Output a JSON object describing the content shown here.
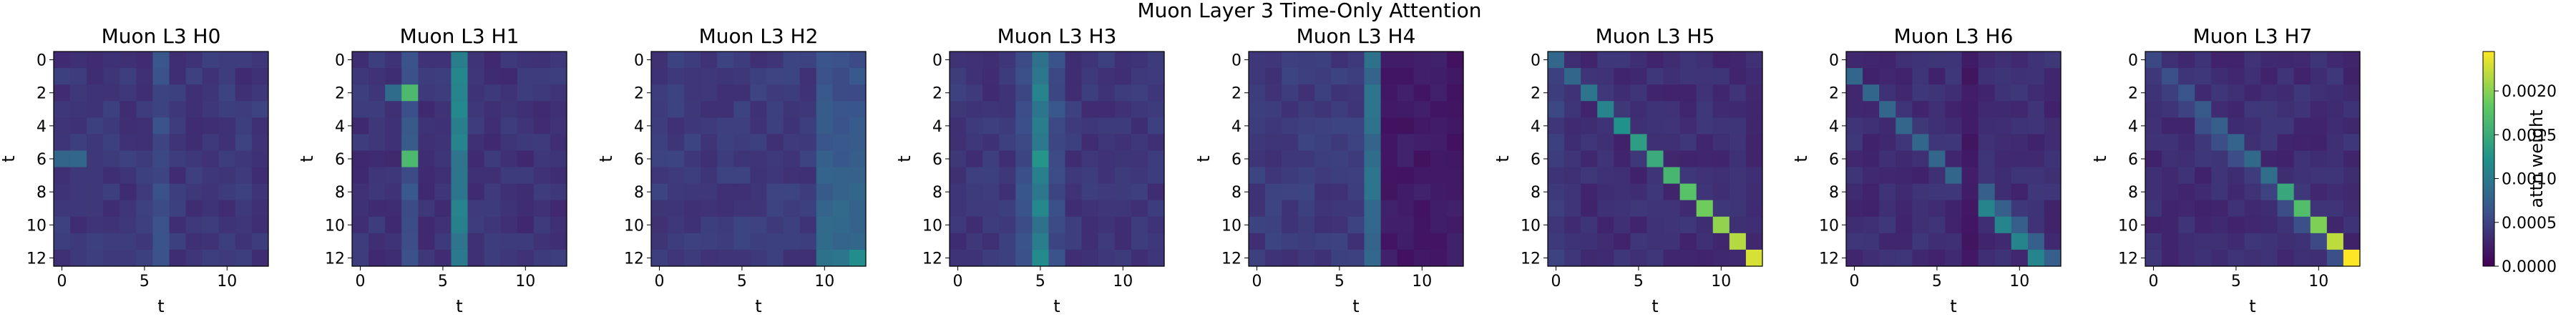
{
  "figure": {
    "suptitle": "Muon Layer 3 Time-Only Attention"
  },
  "colorbar": {
    "label": "attn weight",
    "ticks": [
      "0.0000",
      "0.0005",
      "0.0010",
      "0.0015",
      "0.0020"
    ]
  },
  "chart_data": [
    {
      "type": "heatmap",
      "title": "Muon L3 H0",
      "xlabel": "t",
      "ylabel": "t",
      "xticks": [
        "0",
        "5",
        "10"
      ],
      "yticks": [
        "0",
        "2",
        "4",
        "6",
        "8",
        "10",
        "12"
      ],
      "pattern": "uniform",
      "colormap": "viridis",
      "vmin": 0.0,
      "vmax": 0.00245
    },
    {
      "type": "heatmap",
      "title": "Muon L3 H1",
      "xlabel": "t",
      "ylabel": "t",
      "xticks": [
        "0",
        "5",
        "10"
      ],
      "yticks": [
        "0",
        "2",
        "4",
        "6",
        "8",
        "10",
        "12"
      ],
      "pattern": "column-6-3",
      "colormap": "viridis",
      "vmin": 0.0,
      "vmax": 0.00245
    },
    {
      "type": "heatmap",
      "title": "Muon L3 H2",
      "xlabel": "t",
      "ylabel": "t",
      "xticks": [
        "0",
        "5",
        "10"
      ],
      "yticks": [
        "0",
        "2",
        "4",
        "6",
        "8",
        "10",
        "12"
      ],
      "pattern": "right-cols",
      "colormap": "viridis",
      "vmin": 0.0,
      "vmax": 0.00245
    },
    {
      "type": "heatmap",
      "title": "Muon L3 H3",
      "xlabel": "t",
      "ylabel": "t",
      "xticks": [
        "0",
        "5",
        "10"
      ],
      "yticks": [
        "0",
        "2",
        "4",
        "6",
        "8",
        "10",
        "12"
      ],
      "pattern": "column-5",
      "colormap": "viridis",
      "vmin": 0.0,
      "vmax": 0.00245
    },
    {
      "type": "heatmap",
      "title": "Muon L3 H4",
      "xlabel": "t",
      "ylabel": "t",
      "xticks": [
        "0",
        "5",
        "10"
      ],
      "yticks": [
        "0",
        "2",
        "4",
        "6",
        "8",
        "10",
        "12"
      ],
      "pattern": "column-7-dark-right",
      "colormap": "viridis",
      "vmin": 0.0,
      "vmax": 0.00245
    },
    {
      "type": "heatmap",
      "title": "Muon L3 H5",
      "xlabel": "t",
      "ylabel": "t",
      "xticks": [
        "0",
        "5",
        "10"
      ],
      "yticks": [
        "0",
        "2",
        "4",
        "6",
        "8",
        "10",
        "12"
      ],
      "pattern": "diagonal",
      "colormap": "viridis",
      "vmin": 0.0,
      "vmax": 0.00245
    },
    {
      "type": "heatmap",
      "title": "Muon L3 H6",
      "xlabel": "t",
      "ylabel": "t",
      "xticks": [
        "0",
        "5",
        "10"
      ],
      "yticks": [
        "0",
        "2",
        "4",
        "6",
        "8",
        "10",
        "12"
      ],
      "pattern": "offset-diagonal",
      "colormap": "viridis",
      "vmin": 0.0,
      "vmax": 0.00245
    },
    {
      "type": "heatmap",
      "title": "Muon L3 H7",
      "xlabel": "t",
      "ylabel": "t",
      "xticks": [
        "0",
        "5",
        "10"
      ],
      "yticks": [
        "0",
        "2",
        "4",
        "6",
        "8",
        "10",
        "12"
      ],
      "pattern": "diagonal-strong",
      "colormap": "viridis",
      "vmin": 0.0,
      "vmax": 0.00245
    }
  ]
}
